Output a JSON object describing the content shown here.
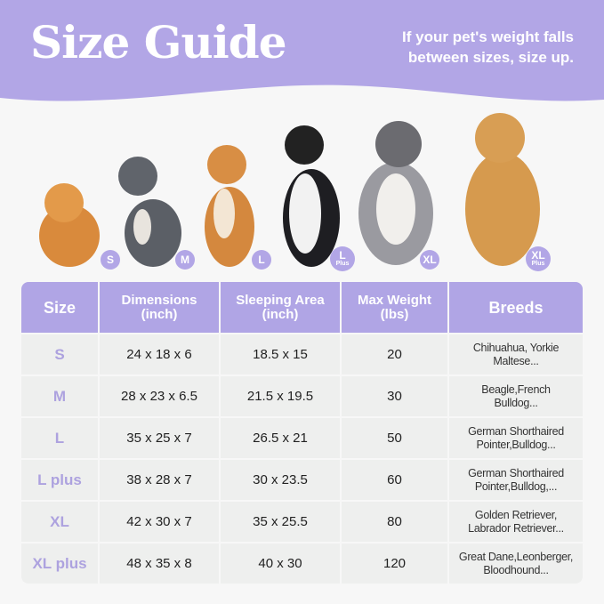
{
  "header": {
    "title": "Size Guide",
    "note_line1": "If your pet's weight falls",
    "note_line2": "between sizes, size up."
  },
  "badges": [
    {
      "label": "S",
      "sub": ""
    },
    {
      "label": "M",
      "sub": ""
    },
    {
      "label": "L",
      "sub": ""
    },
    {
      "label": "L",
      "sub": "Plus"
    },
    {
      "label": "XL",
      "sub": ""
    },
    {
      "label": "XL",
      "sub": "Plus"
    }
  ],
  "table": {
    "headers": [
      {
        "line1": "Size",
        "line2": ""
      },
      {
        "line1": "Dimensions",
        "line2": "(inch)"
      },
      {
        "line1": "Sleeping Area",
        "line2": "(inch)"
      },
      {
        "line1": "Max Weight",
        "line2": "(lbs)"
      },
      {
        "line1": "Breeds",
        "line2": ""
      }
    ],
    "rows": [
      {
        "size": "S",
        "dimensions": "24 x 18 x 6",
        "sleeping": "18.5 x 15",
        "weight": "20",
        "breeds1": "Chihuahua, Yorkie",
        "breeds2": "Maltese..."
      },
      {
        "size": "M",
        "dimensions": "28 x 23 x 6.5",
        "sleeping": "21.5 x 19.5",
        "weight": "30",
        "breeds1": "Beagle,French",
        "breeds2": "Bulldog..."
      },
      {
        "size": "L",
        "dimensions": "35 x 25 x 7",
        "sleeping": "26.5 x 21",
        "weight": "50",
        "breeds1": "German Shorthaired",
        "breeds2": "Pointer,Bulldog..."
      },
      {
        "size": "L plus",
        "dimensions": "38 x 28 x 7",
        "sleeping": "30 x 23.5",
        "weight": "60",
        "breeds1": "German Shorthaired",
        "breeds2": "Pointer,Bulldog,..."
      },
      {
        "size": "XL",
        "dimensions": "42 x 30 x 7",
        "sleeping": "35 x 25.5",
        "weight": "80",
        "breeds1": "Golden Retriever,",
        "breeds2": "Labrador Retriever..."
      },
      {
        "size": "XL plus",
        "dimensions": "48 x 35 x 8",
        "sleeping": "40 x 30",
        "weight": "120",
        "breeds1": "Great Dane,Leonberger,",
        "breeds2": "Bloodhound..."
      }
    ]
  },
  "colors": {
    "accent": "#b0a5e5",
    "cell": "#eeefee",
    "background": "#f7f7f7"
  }
}
